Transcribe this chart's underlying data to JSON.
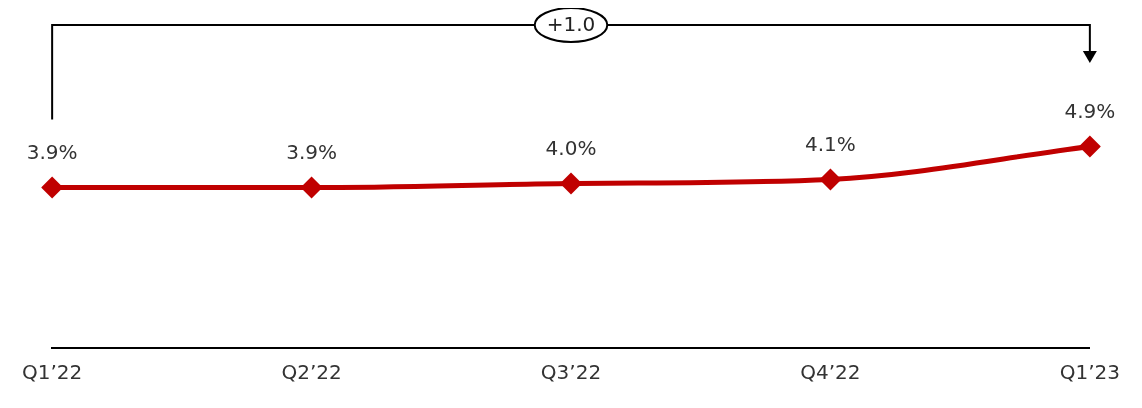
{
  "chart_data": {
    "type": "line",
    "categories": [
      "Q1’22",
      "Q2’22",
      "Q3’22",
      "Q4’22",
      "Q1’23"
    ],
    "series": [
      {
        "color": "#c00000",
        "values": [
          3.9,
          3.9,
          4.0,
          4.1,
          4.9
        ],
        "value_labels": [
          "3.9%",
          "3.9%",
          "4.0%",
          "4.1%",
          "4.9%"
        ]
      }
    ],
    "tick_labels": "x",
    "marker": "diamond",
    "line_style": "solid",
    "grid": false,
    "legend": false,
    "annotations": [
      "+1.0"
    ]
  }
}
